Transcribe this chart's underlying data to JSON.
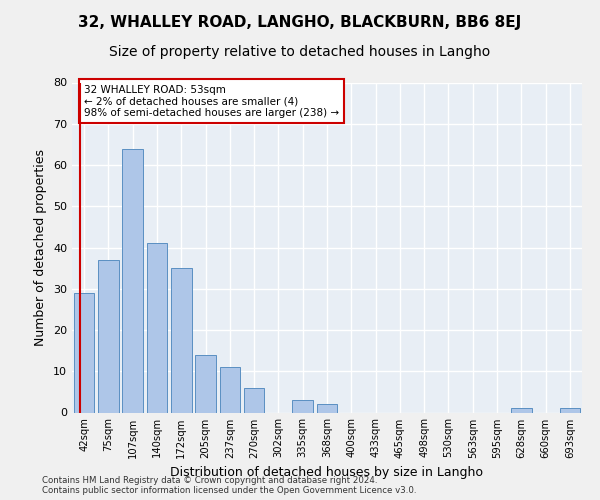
{
  "title1": "32, WHALLEY ROAD, LANGHO, BLACKBURN, BB6 8EJ",
  "title2": "Size of property relative to detached houses in Langho",
  "xlabel": "Distribution of detached houses by size in Langho",
  "ylabel": "Number of detached properties",
  "categories": [
    "42sqm",
    "75sqm",
    "107sqm",
    "140sqm",
    "172sqm",
    "205sqm",
    "237sqm",
    "270sqm",
    "302sqm",
    "335sqm",
    "368sqm",
    "400sqm",
    "433sqm",
    "465sqm",
    "498sqm",
    "530sqm",
    "563sqm",
    "595sqm",
    "628sqm",
    "660sqm",
    "693sqm"
  ],
  "values": [
    29,
    37,
    64,
    41,
    35,
    14,
    11,
    6,
    0,
    3,
    2,
    0,
    0,
    0,
    0,
    0,
    0,
    0,
    1,
    0,
    1
  ],
  "bar_color": "#aec6e8",
  "bar_edge_color": "#5a8fc2",
  "annotation_text": "32 WHALLEY ROAD: 53sqm\n← 2% of detached houses are smaller (4)\n98% of semi-detached houses are larger (238) →",
  "annotation_box_color": "#ffffff",
  "annotation_box_edge": "#cc0000",
  "ylim": [
    0,
    80
  ],
  "yticks": [
    0,
    10,
    20,
    30,
    40,
    50,
    60,
    70,
    80
  ],
  "bg_color": "#e8eef5",
  "grid_color": "#ffffff",
  "footer": "Contains HM Land Registry data © Crown copyright and database right 2024.\nContains public sector information licensed under the Open Government Licence v3.0.",
  "red_line_color": "#cc0000",
  "title1_fontsize": 11,
  "title2_fontsize": 10,
  "xlabel_fontsize": 9,
  "ylabel_fontsize": 9,
  "fig_bg_color": "#f0f0f0"
}
